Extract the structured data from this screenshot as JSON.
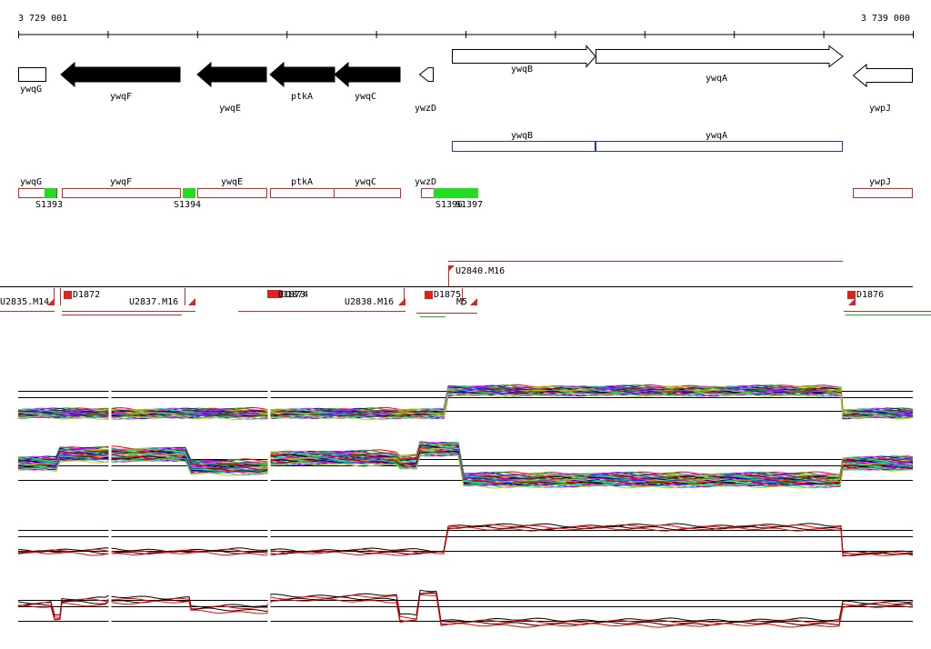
{
  "ruler": {
    "start": "3 729 001",
    "end": "3 739 000"
  },
  "genes": [
    "ywqG",
    "ywqF",
    "ywqE",
    "ptkA",
    "ywqC",
    "ywzD",
    "ywqB",
    "ywqA",
    "ywpJ"
  ],
  "operons": [
    "ywqB",
    "ywqA"
  ],
  "segments": {
    "genes": [
      "ywqG",
      "ywqF",
      "ywqE",
      "ptkA",
      "ywqC",
      "ywzD",
      "ywpJ"
    ],
    "sites": [
      "S1393",
      "S1394",
      "S1396",
      "S1397"
    ]
  },
  "transcripts": [
    "U2840.M16",
    "U2835.M14",
    "D1872",
    "U2837.M16",
    "D1873",
    "D1874",
    "U2838.M16",
    "D1875",
    "M5",
    "D1876"
  ]
}
